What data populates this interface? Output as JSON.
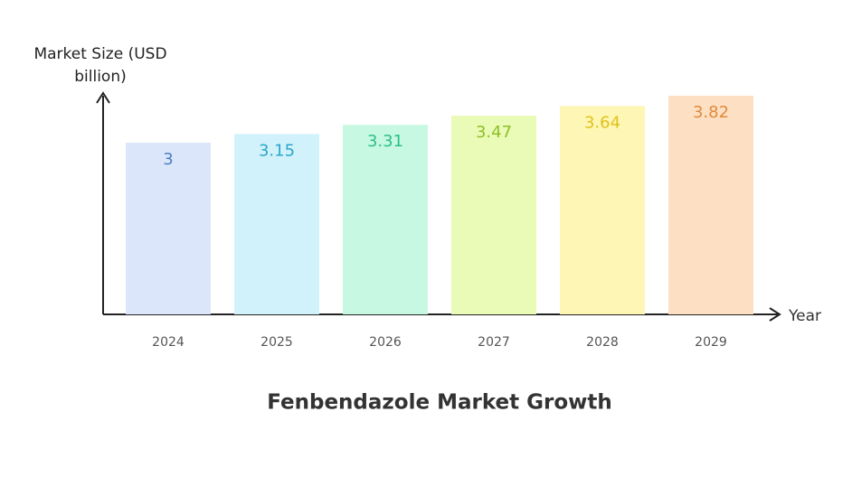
{
  "chart_data": {
    "type": "bar",
    "title": "Fenbendazole Market Growth",
    "x_label": "Year",
    "y_label": "Market Size (USD billion)",
    "categories": [
      "2024",
      "2025",
      "2026",
      "2027",
      "2028",
      "2029"
    ],
    "values": [
      3,
      3.15,
      3.31,
      3.47,
      3.64,
      3.82
    ],
    "colors": [
      "#dce6fb",
      "#d2f2fb",
      "#c7f8e2",
      "#e9fbb6",
      "#fdf6b5",
      "#fde0c4"
    ],
    "label_colors": [
      "#4a7fc1",
      "#2aa7cc",
      "#2bbf8a",
      "#8fbf2a",
      "#e0c21a",
      "#e08a3a"
    ],
    "ylim": [
      0,
      3.85
    ]
  }
}
